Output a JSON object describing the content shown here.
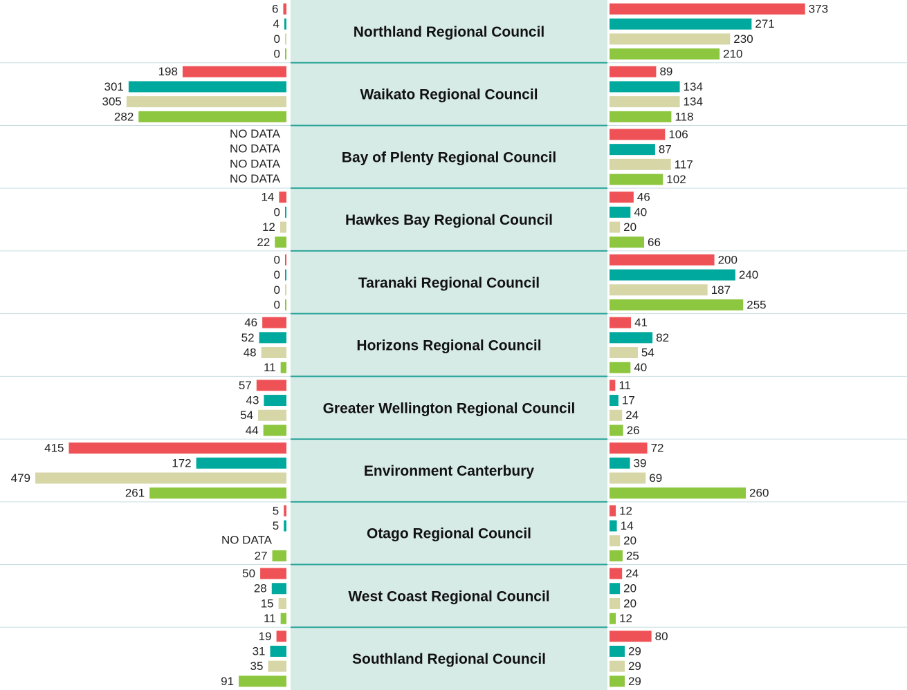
{
  "chart_data": {
    "type": "butterfly",
    "categories": [
      "Northland Regional Council",
      "Waikato Regional Council",
      "Bay of Plenty Regional Council",
      "Hawkes Bay Regional Council",
      "Taranaki Regional Council",
      "Horizons Regional Council",
      "Greater Wellington Regional Council",
      "Environment Canterbury",
      "Otago Regional Council",
      "West Coast Regional Council",
      "Southland Regional Council"
    ],
    "series": [
      {
        "side": "left",
        "color": "#ef5256",
        "values": [
          6,
          198,
          null,
          14,
          0,
          46,
          57,
          415,
          5,
          50,
          19
        ],
        "value_labels": [
          null,
          null,
          "NO DATA",
          null,
          null,
          null,
          null,
          null,
          null,
          null,
          null
        ]
      },
      {
        "side": "left",
        "color": "#00a99d",
        "values": [
          4,
          301,
          null,
          0,
          0,
          52,
          43,
          172,
          5,
          28,
          31
        ],
        "value_labels": [
          null,
          null,
          "NO DATA",
          null,
          null,
          null,
          null,
          null,
          null,
          null,
          null
        ]
      },
      {
        "side": "left",
        "color": "#d6d6a6",
        "values": [
          0,
          305,
          null,
          12,
          0,
          48,
          54,
          479,
          null,
          15,
          35
        ],
        "value_labels": [
          null,
          null,
          "NO DATA",
          null,
          null,
          null,
          null,
          null,
          "NO DATA",
          null,
          null
        ]
      },
      {
        "side": "left",
        "color": "#8dc63f",
        "values": [
          0,
          282,
          null,
          22,
          0,
          11,
          44,
          261,
          27,
          11,
          91
        ],
        "value_labels": [
          null,
          null,
          "NO DATA",
          null,
          null,
          null,
          null,
          null,
          null,
          null,
          null
        ]
      },
      {
        "side": "right",
        "color": "#ef5256",
        "values": [
          373,
          89,
          106,
          46,
          200,
          41,
          11,
          72,
          12,
          24,
          80
        ]
      },
      {
        "side": "right",
        "color": "#00a99d",
        "values": [
          271,
          134,
          87,
          40,
          240,
          82,
          17,
          39,
          14,
          20,
          29
        ]
      },
      {
        "side": "right",
        "color": "#d6d6a6",
        "values": [
          230,
          134,
          117,
          20,
          187,
          54,
          24,
          69,
          20,
          20,
          29
        ]
      },
      {
        "side": "right",
        "color": "#8dc63f",
        "values": [
          210,
          118,
          102,
          66,
          255,
          40,
          26,
          260,
          25,
          12,
          29
        ]
      }
    ]
  }
}
